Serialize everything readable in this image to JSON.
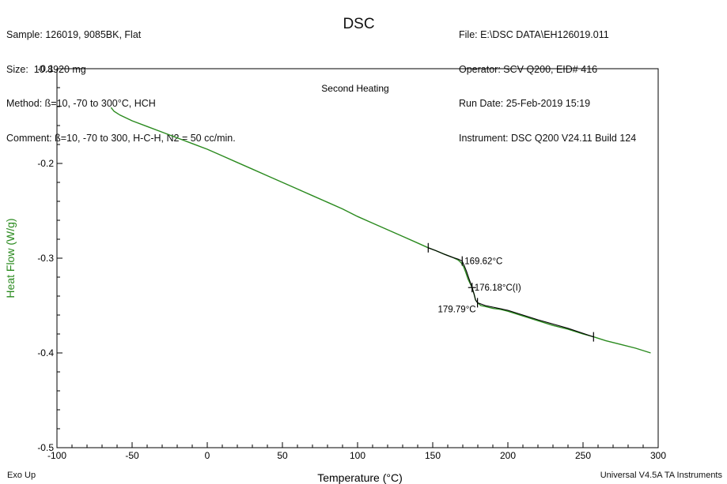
{
  "header": {
    "left": [
      "Sample: 126019, 9085BK, Flat",
      "Size:  10.8920 mg",
      "Method: ß=10, -70 to 300°C, HCH",
      "Comment: ß=10, -70 to 300, H-C-H, N2 = 50 cc/min."
    ],
    "right": [
      "File: E:\\DSC DATA\\EH126019.011",
      "Operator: SCV Q200, EID# 416",
      "Run Date: 25-Feb-2019 15:19",
      "Instrument: DSC Q200 V24.11 Build 124"
    ]
  },
  "footer": {
    "left": "Exo Up",
    "right": "Universal V4.5A TA Instruments"
  },
  "chart_data": {
    "type": "line",
    "title": "DSC",
    "subtitle": "Second Heating",
    "xlabel": "Temperature (°C)",
    "ylabel": "Heat Flow (W/g)",
    "xlim": [
      -100,
      300
    ],
    "ylim": [
      -0.5,
      -0.1
    ],
    "xticks": [
      -100,
      -50,
      0,
      50,
      100,
      150,
      200,
      250,
      300
    ],
    "xtick_labels": [
      "-100",
      "-50",
      "0",
      "50",
      "100",
      "150",
      "200",
      "250",
      "300"
    ],
    "yticks": [
      -0.5,
      -0.4,
      -0.3,
      -0.2,
      -0.1
    ],
    "ytick_labels": [
      "-0.5",
      "-0.4",
      "-0.3",
      "-0.2",
      "-0.1"
    ],
    "grid": false,
    "colors": {
      "data": "#2a8a1e",
      "analysis": "#000000",
      "ylabel": "#2a8a1e"
    },
    "series": [
      {
        "x": [
          -64,
          -62,
          -58,
          -50,
          -40,
          -30,
          -20,
          -10,
          0,
          10,
          20,
          30,
          40,
          50,
          60,
          70,
          80,
          90,
          100,
          110,
          120,
          130,
          140,
          147,
          152,
          158,
          163,
          167,
          169,
          170.5,
          172,
          173.5,
          175,
          176.2,
          177.5,
          178.5,
          179.8,
          182,
          185,
          190,
          195,
          200,
          210,
          220,
          230,
          240,
          250,
          257,
          265,
          275,
          285,
          295
        ],
        "y": [
          -0.141,
          -0.145,
          -0.149,
          -0.155,
          -0.161,
          -0.167,
          -0.173,
          -0.179,
          -0.185,
          -0.192,
          -0.199,
          -0.206,
          -0.213,
          -0.22,
          -0.227,
          -0.234,
          -0.241,
          -0.248,
          -0.256,
          -0.263,
          -0.27,
          -0.277,
          -0.284,
          -0.289,
          -0.292,
          -0.296,
          -0.299,
          -0.302,
          -0.305,
          -0.309,
          -0.315,
          -0.322,
          -0.327,
          -0.331,
          -0.338,
          -0.344,
          -0.347,
          -0.35,
          -0.351,
          -0.353,
          -0.354,
          -0.356,
          -0.361,
          -0.366,
          -0.371,
          -0.375,
          -0.38,
          -0.383,
          -0.387,
          -0.391,
          -0.395,
          -0.4
        ]
      }
    ],
    "analysis_line": {
      "x": [
        147,
        152,
        158,
        163,
        167,
        169.6,
        171,
        172.5,
        174,
        176.2,
        177.5,
        178.5,
        179.8,
        185,
        200,
        220,
        240,
        257
      ],
      "y": [
        -0.289,
        -0.292,
        -0.296,
        -0.299,
        -0.301,
        -0.303,
        -0.308,
        -0.314,
        -0.321,
        -0.331,
        -0.338,
        -0.344,
        -0.347,
        -0.35,
        -0.355,
        -0.365,
        -0.374,
        -0.383
      ]
    },
    "markers": [
      {
        "x": 147,
        "y": -0.289
      },
      {
        "x": 169.62,
        "y": -0.303
      },
      {
        "x": 176.18,
        "y": -0.331
      },
      {
        "x": 179.79,
        "y": -0.347
      },
      {
        "x": 257,
        "y": -0.383
      }
    ],
    "annotations": [
      {
        "text": "169.62°C",
        "x": 169.62,
        "y": -0.303,
        "anchor": "right"
      },
      {
        "text": "176.18°C(I)",
        "x": 176.18,
        "y": -0.331,
        "anchor": "right"
      },
      {
        "text": "179.79°C",
        "x": 179.79,
        "y": -0.347,
        "anchor": "left-below"
      }
    ]
  }
}
